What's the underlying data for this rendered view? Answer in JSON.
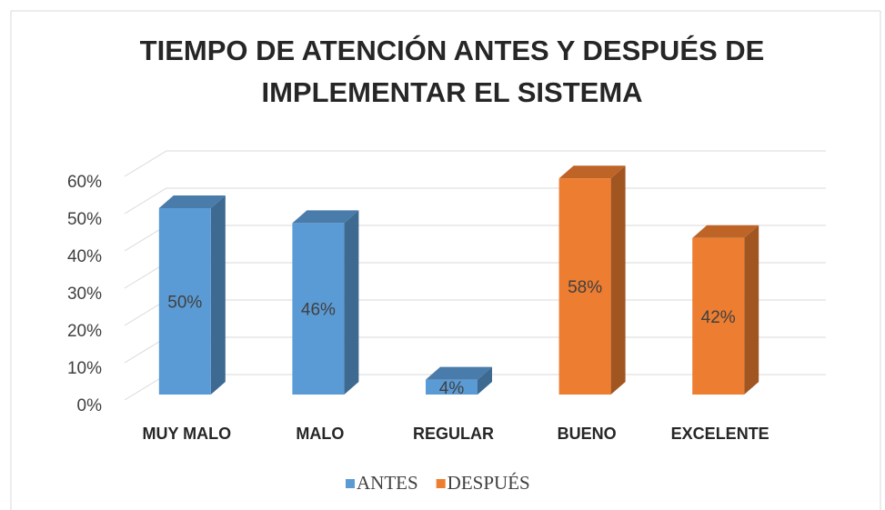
{
  "chart_data": {
    "type": "bar3d",
    "title": [
      "TIEMPO DE ATENCIÓN ANTES Y DESPUÉS DE",
      "IMPLEMENTAR EL SISTEMA"
    ],
    "categories": [
      "MUY MALO",
      "MALO",
      "REGULAR",
      "BUENO",
      "EXCELENTE"
    ],
    "series": [
      {
        "name": "ANTES",
        "color": "#5b9bd5",
        "values": [
          50,
          46,
          4,
          null,
          null
        ],
        "value_labels": [
          "50%",
          "46%",
          "4%",
          null,
          null
        ]
      },
      {
        "name": "DESPUÉS",
        "color": "#ed7d31",
        "values": [
          null,
          null,
          null,
          58,
          42
        ],
        "value_labels": [
          null,
          null,
          null,
          "58%",
          "42%"
        ]
      }
    ],
    "ylim": [
      0,
      60
    ],
    "yticks": [
      {
        "value": 0,
        "label": "0%"
      },
      {
        "value": 10,
        "label": "10%"
      },
      {
        "value": 20,
        "label": "20%"
      },
      {
        "value": 30,
        "label": "30%"
      },
      {
        "value": 40,
        "label": "40%"
      },
      {
        "value": 50,
        "label": "50%"
      },
      {
        "value": 60,
        "label": "60%"
      }
    ],
    "grid": true,
    "legend": "bottom"
  }
}
